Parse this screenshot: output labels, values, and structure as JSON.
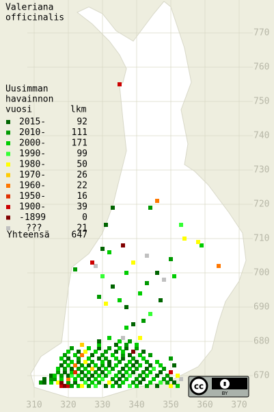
{
  "map": {
    "title": [
      "Valeriana",
      "officinalis"
    ],
    "legend": {
      "heading": [
        "Uusimman",
        "havainnon",
        "vuosi"
      ],
      "count_heading": "lkm",
      "rows": [
        {
          "label": "2015-",
          "count": 92,
          "color": "#006400"
        },
        {
          "label": "2010-",
          "count": 111,
          "color": "#009900"
        },
        {
          "label": "2000-",
          "count": 171,
          "color": "#00cc00"
        },
        {
          "label": "1990-",
          "count": 99,
          "color": "#33ff33"
        },
        {
          "label": "1980-",
          "count": 50,
          "color": "#ffff00"
        },
        {
          "label": "1970-",
          "count": 26,
          "color": "#ffcc00"
        },
        {
          "label": "1960-",
          "count": 22,
          "color": "#ff7700"
        },
        {
          "label": "1950-",
          "count": 16,
          "color": "#e03000"
        },
        {
          "label": "1900-",
          "count": 39,
          "color": "#cc0000"
        },
        {
          "label": "-1899",
          "count": 0,
          "color": "#800000"
        },
        {
          "label": "???",
          "count": 21,
          "color": "#c0c0c0"
        }
      ],
      "total_label": "Yhteensä",
      "total": 647
    },
    "xticks": [
      310,
      320,
      330,
      340,
      350,
      360,
      370
    ],
    "yticks": [
      670,
      680,
      690,
      700,
      710,
      720,
      730,
      740,
      750,
      760,
      770
    ],
    "badge": {
      "cc": "cc",
      "by": "BY"
    },
    "cells": [
      [
        318,
        667,
        8
      ],
      [
        319,
        667,
        9
      ],
      [
        320,
        667,
        8
      ],
      [
        321,
        667,
        1
      ],
      [
        323,
        667,
        2
      ],
      [
        324,
        667,
        4
      ],
      [
        326,
        667,
        1
      ],
      [
        328,
        667,
        3
      ],
      [
        331,
        667,
        0
      ],
      [
        333,
        667,
        2
      ],
      [
        335,
        667,
        1
      ],
      [
        338,
        667,
        3
      ],
      [
        340,
        667,
        2
      ],
      [
        343,
        667,
        1
      ],
      [
        346,
        667,
        0
      ],
      [
        350,
        667,
        4
      ],
      [
        352,
        667,
        2
      ],
      [
        312,
        668,
        1
      ],
      [
        313,
        668,
        0
      ],
      [
        315,
        668,
        2
      ],
      [
        317,
        668,
        4
      ],
      [
        318,
        668,
        9
      ],
      [
        320,
        668,
        1
      ],
      [
        322,
        668,
        0
      ],
      [
        325,
        668,
        3
      ],
      [
        327,
        668,
        2
      ],
      [
        329,
        668,
        1
      ],
      [
        332,
        668,
        4
      ],
      [
        334,
        668,
        0
      ],
      [
        336,
        668,
        2
      ],
      [
        339,
        668,
        1
      ],
      [
        341,
        668,
        0
      ],
      [
        344,
        668,
        2
      ],
      [
        347,
        668,
        3
      ],
      [
        349,
        668,
        1
      ],
      [
        351,
        668,
        0
      ],
      [
        313,
        669,
        0
      ],
      [
        315,
        669,
        1
      ],
      [
        316,
        669,
        1
      ],
      [
        318,
        669,
        2
      ],
      [
        320,
        669,
        6
      ],
      [
        322,
        669,
        2
      ],
      [
        324,
        669,
        1
      ],
      [
        326,
        669,
        0
      ],
      [
        328,
        669,
        2
      ],
      [
        330,
        669,
        3
      ],
      [
        333,
        669,
        1
      ],
      [
        335,
        669,
        0
      ],
      [
        337,
        669,
        2
      ],
      [
        340,
        669,
        1
      ],
      [
        342,
        669,
        0
      ],
      [
        345,
        669,
        2
      ],
      [
        348,
        669,
        1
      ],
      [
        350,
        669,
        0
      ],
      [
        353,
        669,
        10
      ],
      [
        315,
        670,
        0
      ],
      [
        316,
        670,
        2
      ],
      [
        318,
        670,
        1
      ],
      [
        320,
        670,
        0
      ],
      [
        321,
        670,
        3
      ],
      [
        323,
        670,
        2
      ],
      [
        325,
        670,
        1
      ],
      [
        327,
        670,
        0
      ],
      [
        329,
        670,
        2
      ],
      [
        331,
        670,
        1
      ],
      [
        334,
        670,
        2
      ],
      [
        336,
        670,
        0
      ],
      [
        338,
        670,
        3
      ],
      [
        341,
        670,
        1
      ],
      [
        343,
        670,
        2
      ],
      [
        346,
        670,
        0
      ],
      [
        349,
        670,
        1
      ],
      [
        352,
        670,
        4
      ],
      [
        317,
        671,
        1
      ],
      [
        319,
        671,
        0
      ],
      [
        321,
        671,
        2
      ],
      [
        322,
        671,
        7
      ],
      [
        324,
        671,
        0
      ],
      [
        326,
        671,
        2
      ],
      [
        328,
        671,
        1
      ],
      [
        330,
        671,
        0
      ],
      [
        332,
        671,
        3
      ],
      [
        335,
        671,
        1
      ],
      [
        337,
        671,
        2
      ],
      [
        339,
        671,
        0
      ],
      [
        342,
        671,
        1
      ],
      [
        344,
        671,
        2
      ],
      [
        347,
        671,
        0
      ],
      [
        350,
        671,
        8
      ],
      [
        317,
        672,
        2
      ],
      [
        319,
        672,
        1
      ],
      [
        321,
        672,
        0
      ],
      [
        323,
        672,
        1
      ],
      [
        325,
        672,
        2
      ],
      [
        327,
        672,
        5
      ],
      [
        329,
        672,
        0
      ],
      [
        331,
        672,
        2
      ],
      [
        333,
        672,
        1
      ],
      [
        336,
        672,
        0
      ],
      [
        338,
        672,
        2
      ],
      [
        340,
        672,
        1
      ],
      [
        343,
        672,
        0
      ],
      [
        345,
        672,
        3
      ],
      [
        348,
        672,
        1
      ],
      [
        318,
        673,
        0
      ],
      [
        320,
        673,
        2
      ],
      [
        322,
        673,
        6
      ],
      [
        324,
        673,
        1
      ],
      [
        326,
        673,
        0
      ],
      [
        328,
        673,
        2
      ],
      [
        330,
        673,
        1
      ],
      [
        332,
        673,
        0
      ],
      [
        334,
        673,
        2
      ],
      [
        337,
        673,
        1
      ],
      [
        339,
        673,
        0
      ],
      [
        341,
        673,
        2
      ],
      [
        344,
        673,
        0
      ],
      [
        347,
        673,
        2
      ],
      [
        351,
        673,
        0
      ],
      [
        319,
        674,
        1
      ],
      [
        321,
        674,
        2
      ],
      [
        323,
        674,
        0
      ],
      [
        325,
        674,
        4
      ],
      [
        327,
        674,
        1
      ],
      [
        330,
        674,
        2
      ],
      [
        332,
        674,
        0
      ],
      [
        335,
        674,
        1
      ],
      [
        338,
        674,
        2
      ],
      [
        340,
        674,
        0
      ],
      [
        343,
        674,
        1
      ],
      [
        346,
        674,
        2
      ],
      [
        318,
        675,
        2
      ],
      [
        320,
        675,
        0
      ],
      [
        323,
        675,
        1
      ],
      [
        326,
        675,
        2
      ],
      [
        329,
        675,
        0
      ],
      [
        331,
        675,
        1
      ],
      [
        334,
        675,
        2
      ],
      [
        336,
        675,
        0
      ],
      [
        339,
        675,
        1
      ],
      [
        342,
        675,
        2
      ],
      [
        350,
        675,
        1
      ],
      [
        319,
        676,
        1
      ],
      [
        322,
        676,
        2
      ],
      [
        324,
        676,
        6
      ],
      [
        327,
        676,
        0
      ],
      [
        330,
        676,
        1
      ],
      [
        333,
        676,
        2
      ],
      [
        336,
        676,
        1
      ],
      [
        338,
        676,
        0
      ],
      [
        341,
        676,
        2
      ],
      [
        344,
        676,
        1
      ],
      [
        320,
        677,
        2
      ],
      [
        323,
        677,
        0
      ],
      [
        325,
        677,
        4
      ],
      [
        328,
        677,
        2
      ],
      [
        331,
        677,
        1
      ],
      [
        334,
        677,
        0
      ],
      [
        336,
        677,
        2
      ],
      [
        339,
        677,
        9
      ],
      [
        342,
        677,
        0
      ],
      [
        321,
        678,
        1
      ],
      [
        326,
        678,
        2
      ],
      [
        329,
        678,
        0
      ],
      [
        332,
        678,
        1
      ],
      [
        335,
        678,
        2
      ],
      [
        337,
        678,
        0
      ],
      [
        340,
        678,
        1
      ],
      [
        324,
        679,
        5
      ],
      [
        329,
        679,
        2
      ],
      [
        334,
        679,
        0
      ],
      [
        337,
        679,
        1
      ],
      [
        340,
        679,
        2
      ],
      [
        329,
        680,
        0
      ],
      [
        335,
        680,
        2
      ],
      [
        338,
        680,
        1
      ],
      [
        332,
        681,
        2
      ],
      [
        336,
        681,
        10
      ],
      [
        341,
        681,
        4
      ],
      [
        337,
        684,
        2
      ],
      [
        339,
        685,
        0
      ],
      [
        342,
        686,
        1
      ],
      [
        344,
        688,
        3
      ],
      [
        337,
        690,
        0
      ],
      [
        331,
        691,
        4
      ],
      [
        335,
        692,
        2
      ],
      [
        329,
        693,
        1
      ],
      [
        347,
        692,
        0
      ],
      [
        341,
        694,
        2
      ],
      [
        333,
        696,
        0
      ],
      [
        343,
        697,
        1
      ],
      [
        348,
        698,
        10
      ],
      [
        330,
        699,
        3
      ],
      [
        337,
        700,
        2
      ],
      [
        346,
        700,
        0
      ],
      [
        351,
        699,
        2
      ],
      [
        322,
        701,
        1
      ],
      [
        328,
        702,
        10
      ],
      [
        339,
        703,
        4
      ],
      [
        350,
        704,
        1
      ],
      [
        343,
        705,
        10
      ],
      [
        332,
        706,
        2
      ],
      [
        330,
        707,
        0
      ],
      [
        336,
        708,
        9
      ],
      [
        354,
        710,
        4
      ],
      [
        359,
        708,
        2
      ],
      [
        353,
        714,
        3
      ],
      [
        331,
        714,
        0
      ],
      [
        327,
        703,
        8
      ],
      [
        333,
        719,
        0
      ],
      [
        344,
        719,
        1
      ],
      [
        335,
        755,
        8
      ],
      [
        346,
        721,
        6
      ],
      [
        364,
        702,
        6
      ],
      [
        358,
        709,
        4
      ]
    ]
  }
}
